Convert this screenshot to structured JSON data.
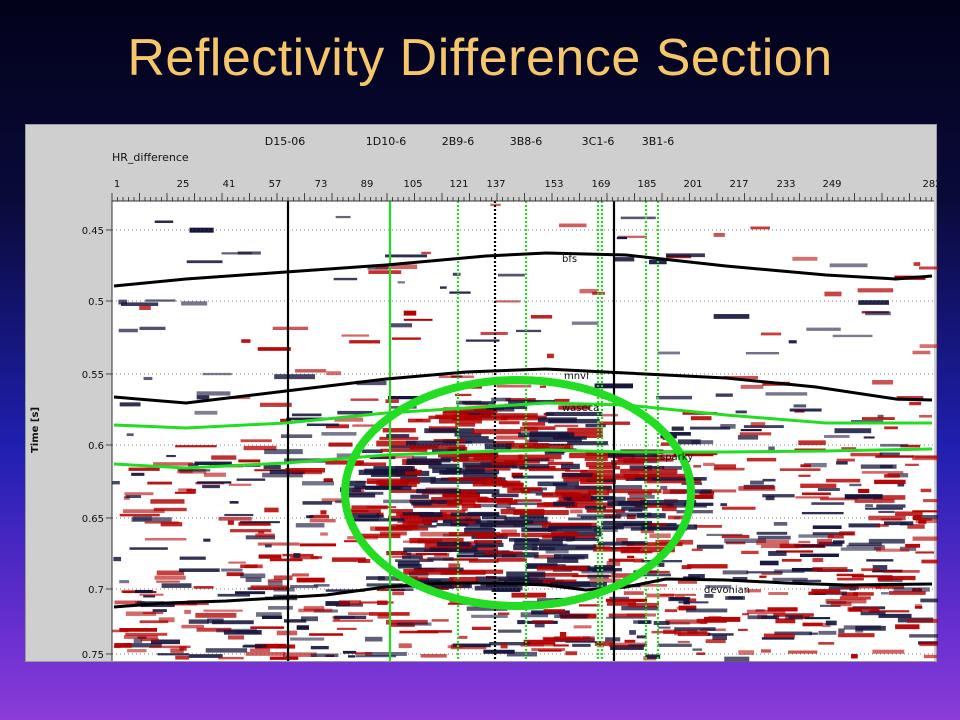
{
  "slide": {
    "title": "Reflectivity Difference Section"
  },
  "section": {
    "name": "HR_difference",
    "y_axis_label": "Time [s]",
    "trace_ticks": [
      "1",
      "25",
      "41",
      "57",
      "73",
      "89",
      "105",
      "121",
      "137",
      "153",
      "169",
      "185",
      "201",
      "217",
      "233",
      "249",
      "282"
    ],
    "time_ticks": [
      "0.45",
      "0.5",
      "0.55",
      "0.6",
      "0.65",
      "0.7",
      "0.75"
    ],
    "wells": [
      {
        "name": "D15-06"
      },
      {
        "name": "1D10-6"
      },
      {
        "name": "2B9-6"
      },
      {
        "name": "3B8-6"
      },
      {
        "name": "3C1-6"
      },
      {
        "name": "3B1-6"
      }
    ],
    "horizons": [
      {
        "name": "bfs",
        "color": "#000000"
      },
      {
        "name": "mnvl",
        "color": "#000000"
      },
      {
        "name": "waseca",
        "color": "#22dd22"
      },
      {
        "name": "sparky",
        "color": "#22dd22"
      },
      {
        "name": "devonian",
        "color": "#000000"
      }
    ],
    "highlight_color": "#22dd22",
    "amplitude_colors": {
      "positive": "#b40000",
      "negative": "#14143c"
    }
  }
}
